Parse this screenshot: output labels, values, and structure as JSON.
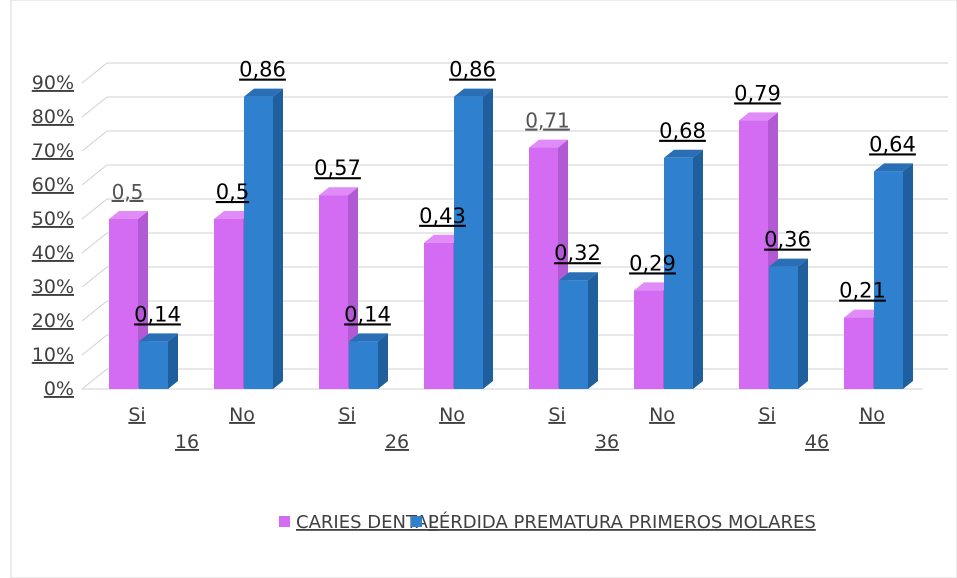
{
  "colors": {
    "series_0": "#d36cf2",
    "series_0_side": "#b259d4",
    "series_0_top": "#e08bf7",
    "series_1": "#2f80cf",
    "series_1_side": "#205f9e",
    "series_1_top": "#2a6fb5",
    "grid": "#d0d0d0",
    "axis_text": "#404040"
  },
  "chart_data": {
    "type": "bar",
    "style": "3d-clustered-column",
    "categories": [
      "Si",
      "No",
      "Si",
      "No",
      "Si",
      "No",
      "Si",
      "No"
    ],
    "groups": [
      "16",
      "26",
      "36",
      "46"
    ],
    "series": [
      {
        "name": "CARIES DENTAL",
        "values": [
          0.5,
          0.5,
          0.57,
          0.43,
          0.71,
          0.29,
          0.79,
          0.21
        ]
      },
      {
        "name": "PÉRDIDA PREMATURA PRIMEROS MOLARES",
        "values": [
          0.14,
          0.86,
          0.14,
          0.86,
          0.32,
          0.68,
          0.36,
          0.64
        ]
      }
    ],
    "data_labels": [
      [
        "0,5",
        "0,5",
        "0,57",
        "0,43",
        "0,71",
        "0,29",
        "0,79",
        "0,21"
      ],
      [
        "0,14",
        "0,86",
        "0,14",
        "0,86",
        "0,32",
        "0,68",
        "0,36",
        "0,64"
      ]
    ],
    "y_ticks": [
      "0%",
      "10%",
      "20%",
      "30%",
      "40%",
      "50%",
      "60%",
      "70%",
      "80%",
      "90%"
    ],
    "ylim": [
      0,
      0.9
    ],
    "grid": true,
    "legend_position": "bottom-left"
  }
}
